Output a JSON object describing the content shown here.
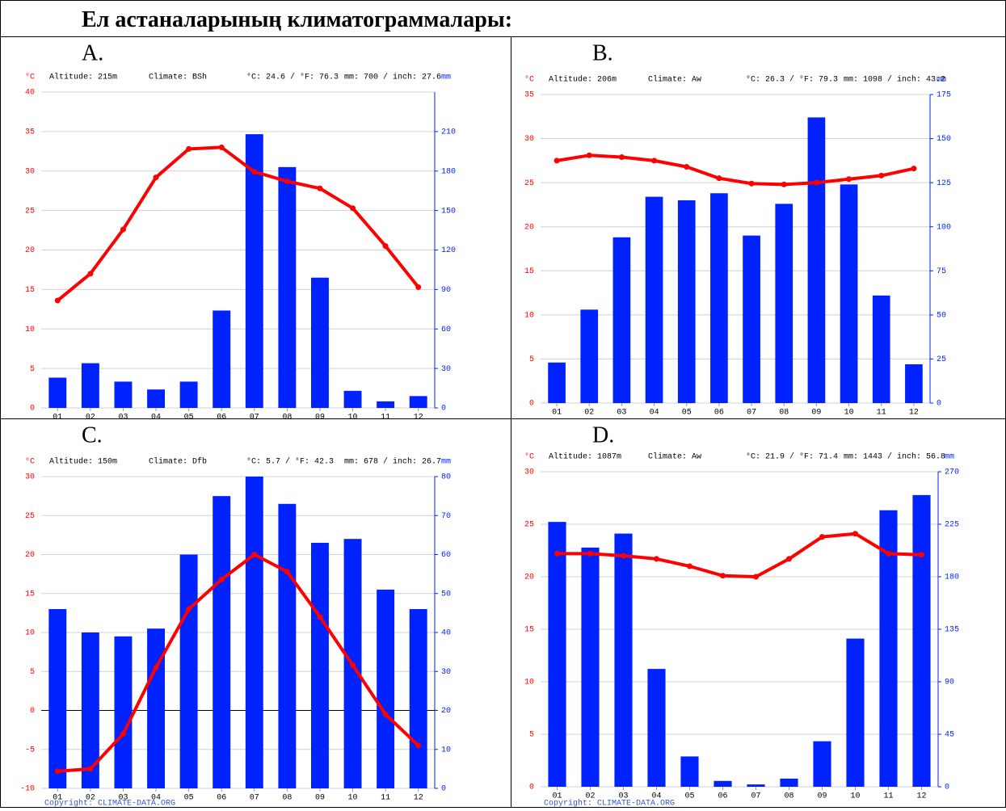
{
  "heading": "Ел астаналарының климатограммалары:",
  "chart_data": [
    {
      "type": "combo",
      "label": "A.",
      "ylabel": "°C",
      "y2label": "mm",
      "annotations": [
        "Altitude: 215m",
        "Climate: BSh",
        "°C: 24.6 / °F: 76.3",
        "mm: 700 / inch: 27.6"
      ],
      "categories": [
        "01",
        "02",
        "03",
        "04",
        "05",
        "06",
        "07",
        "08",
        "09",
        "10",
        "11",
        "12"
      ],
      "series": [
        {
          "type": "bar",
          "axis": "y2",
          "color": "#0022ff",
          "values": [
            23,
            34,
            20,
            14,
            20,
            74,
            208,
            183,
            99,
            13,
            5,
            9
          ]
        },
        {
          "type": "line",
          "color": "#ff0000",
          "values": [
            13.6,
            17.0,
            22.6,
            29.2,
            32.8,
            33.0,
            29.9,
            28.7,
            27.8,
            25.3,
            20.5,
            15.3
          ]
        }
      ],
      "ylim": [
        0,
        40
      ],
      "yticks": [
        0,
        5,
        10,
        15,
        20,
        25,
        30,
        35,
        40
      ],
      "y2lim": [
        0,
        240
      ],
      "y2ticks": [
        0,
        30,
        60,
        90,
        120,
        150,
        180,
        210
      ],
      "grid": true
    },
    {
      "type": "combo",
      "label": "B.",
      "ylabel": "°C",
      "y2label": "mm",
      "annotations": [
        "Altitude: 206m",
        "Climate: Aw",
        "°C: 26.3 / °F: 79.3",
        "mm: 1098 / inch: 43.2"
      ],
      "categories": [
        "01",
        "02",
        "03",
        "04",
        "05",
        "06",
        "07",
        "08",
        "09",
        "10",
        "11",
        "12"
      ],
      "series": [
        {
          "type": "bar",
          "axis": "y2",
          "color": "#0022ff",
          "values": [
            23,
            53,
            94,
            117,
            115,
            119,
            95,
            113,
            162,
            124,
            61,
            22
          ]
        },
        {
          "type": "line",
          "color": "#ff0000",
          "values": [
            27.5,
            28.1,
            27.9,
            27.5,
            26.8,
            25.5,
            24.9,
            24.8,
            25.0,
            25.4,
            25.8,
            26.6
          ]
        }
      ],
      "ylim": [
        0,
        35
      ],
      "yticks": [
        0,
        5,
        10,
        15,
        20,
        25,
        30,
        35
      ],
      "y2lim": [
        0,
        175
      ],
      "y2ticks": [
        0,
        25,
        50,
        75,
        100,
        125,
        150,
        175
      ],
      "grid": true
    },
    {
      "type": "combo",
      "label": "C.",
      "ylabel": "°C",
      "y2label": "mm",
      "annotations": [
        "Altitude: 150m",
        "Climate: Dfb",
        "°C: 5.7 / °F: 42.3",
        "mm: 678 / inch: 26.7"
      ],
      "categories": [
        "01",
        "02",
        "03",
        "04",
        "05",
        "06",
        "07",
        "08",
        "09",
        "10",
        "11",
        "12"
      ],
      "series": [
        {
          "type": "bar",
          "axis": "y2",
          "color": "#0022ff",
          "values": [
            46,
            40,
            39,
            41,
            60,
            75,
            80,
            73,
            63,
            64,
            51,
            46
          ]
        },
        {
          "type": "line",
          "color": "#ff0000",
          "values": [
            -7.8,
            -7.5,
            -3.0,
            5.5,
            13.0,
            16.8,
            20.0,
            17.8,
            12.0,
            5.8,
            -0.5,
            -4.5
          ]
        }
      ],
      "ylim": [
        -10,
        30
      ],
      "yticks": [
        -10,
        -5,
        0,
        5,
        10,
        15,
        20,
        25,
        30
      ],
      "y2lim": [
        0,
        80
      ],
      "y2ticks": [
        0,
        10,
        20,
        30,
        40,
        50,
        60,
        70,
        80
      ],
      "grid": true,
      "source": "Copyright: CLIMATE-DATA.ORG"
    },
    {
      "type": "combo",
      "label": "D.",
      "ylabel": "°C",
      "y2label": "mm",
      "annotations": [
        "Altitude: 1087m",
        "Climate: Aw",
        "°C: 21.9 / °F: 71.4",
        "mm: 1443 / inch: 56.8"
      ],
      "categories": [
        "01",
        "02",
        "03",
        "04",
        "05",
        "06",
        "07",
        "08",
        "09",
        "10",
        "11",
        "12"
      ],
      "series": [
        {
          "type": "bar",
          "axis": "y2",
          "color": "#0022ff",
          "values": [
            227,
            205,
            217,
            101,
            26,
            5,
            2,
            7,
            39,
            127,
            237,
            250
          ]
        },
        {
          "type": "line",
          "color": "#ff0000",
          "values": [
            22.2,
            22.2,
            22.0,
            21.7,
            21.0,
            20.1,
            20.0,
            21.7,
            23.8,
            24.1,
            22.2,
            22.1
          ]
        }
      ],
      "ylim": [
        0,
        30
      ],
      "yticks": [
        0,
        5,
        10,
        15,
        20,
        25,
        30
      ],
      "y2lim": [
        0,
        270
      ],
      "y2ticks": [
        0,
        45,
        90,
        135,
        180,
        225,
        270
      ],
      "grid": true,
      "source": "Copyright: CLIMATE-DATA.ORG"
    }
  ]
}
